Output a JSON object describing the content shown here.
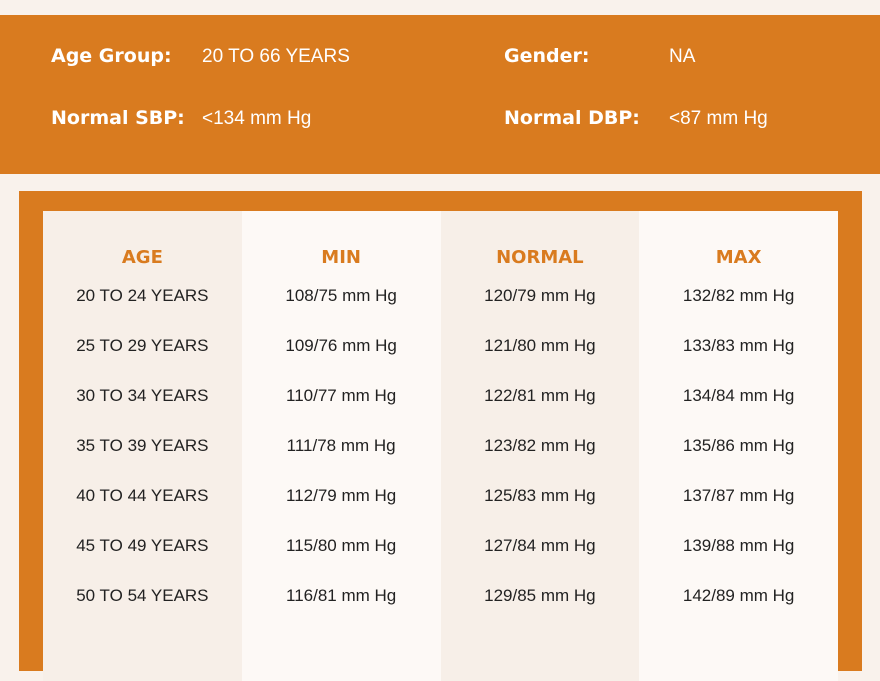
{
  "info": {
    "age_group_label": "Age Group:",
    "age_group": "20 TO 66 YEARS",
    "gender_label": "Gender:",
    "gender": "NA",
    "sbp_label": "Normal SBP:",
    "sbp": "<134 mm Hg",
    "dbp_label": "Normal DBP:",
    "dbp": "<87 mm Hg"
  },
  "table": {
    "headers": [
      "AGE",
      "MIN",
      "NORMAL",
      "MAX"
    ],
    "rows": [
      [
        "20 TO 24 YEARS",
        "108/75 mm Hg",
        "120/79 mm Hg",
        "132/82 mm Hg"
      ],
      [
        "25 TO 29 YEARS",
        "109/76 mm Hg",
        "121/80 mm Hg",
        "133/83 mm Hg"
      ],
      [
        "30 TO 34 YEARS",
        "110/77 mm Hg",
        "122/81 mm Hg",
        "134/84 mm Hg"
      ],
      [
        "35 TO 39 YEARS",
        "111/78 mm Hg",
        "123/82 mm Hg",
        "135/86 mm Hg"
      ],
      [
        "40 TO 44 YEARS",
        "112/79 mm Hg",
        "125/83 mm Hg",
        "137/87 mm Hg"
      ],
      [
        "45 TO 49 YEARS",
        "115/80 mm Hg",
        "127/84 mm Hg",
        "139/88 mm Hg"
      ],
      [
        "50 TO 54 YEARS",
        "116/81 mm Hg",
        "129/85 mm Hg",
        "142/89 mm Hg"
      ]
    ]
  },
  "colors": {
    "accent": "#d97b1f",
    "background": "#f9f2ec"
  }
}
